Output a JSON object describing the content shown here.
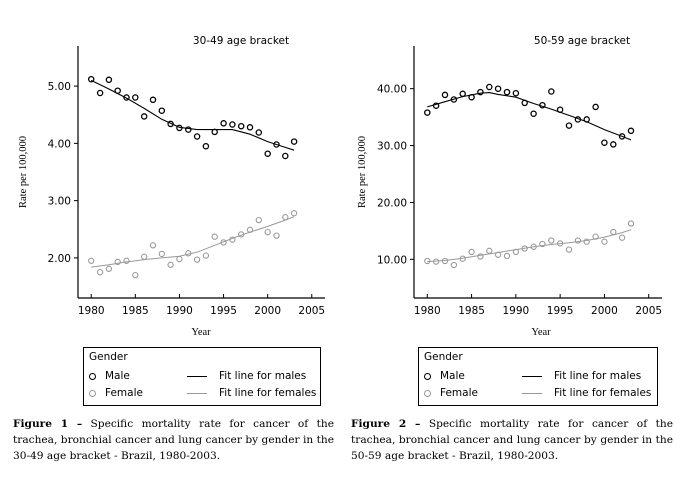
{
  "chart_data": [
    {
      "type": "scatter",
      "title": "30-49 age bracket",
      "xlabel": "Year",
      "ylabel": "Rate per 100,000",
      "xlim": [
        1978.5,
        2006.5
      ],
      "ylim": [
        1.3,
        5.7
      ],
      "xticks": [
        1980,
        1985,
        1990,
        1995,
        2000,
        2005
      ],
      "xtick_labels": [
        "1980",
        "1985",
        "1990",
        "1995",
        "2000",
        "2005"
      ],
      "yticks": [
        2,
        3,
        4,
        5
      ],
      "ytick_labels": [
        "2.00",
        "3.00",
        "4.00",
        "5.00"
      ],
      "grid": false,
      "x": [
        1980,
        1981,
        1982,
        1983,
        1984,
        1985,
        1986,
        1987,
        1988,
        1989,
        1990,
        1991,
        1992,
        1993,
        1994,
        1995,
        1996,
        1997,
        1998,
        1999,
        2000,
        2001,
        2002,
        2003
      ],
      "series": [
        {
          "name": "Male",
          "color": "#000000",
          "values": [
            5.12,
            4.88,
            5.11,
            4.92,
            4.8,
            4.8,
            4.47,
            4.76,
            4.57,
            4.34,
            4.27,
            4.24,
            4.12,
            3.95,
            4.2,
            4.35,
            4.33,
            4.3,
            4.28,
            4.19,
            3.82,
            3.98,
            3.78,
            4.03
          ],
          "fit_name": "Fit line for males",
          "fit": {
            "x": [
              1980,
              1982,
              1984,
              1986,
              1988,
              1990,
              1992,
              1994,
              1996,
              1998,
              2000,
              2002,
              2003
            ],
            "y": [
              5.1,
              4.95,
              4.79,
              4.61,
              4.42,
              4.28,
              4.24,
              4.24,
              4.24,
              4.16,
              4.03,
              3.93,
              3.88
            ]
          }
        },
        {
          "name": "Female",
          "color": "#999999",
          "values": [
            1.95,
            1.75,
            1.81,
            1.93,
            1.95,
            1.7,
            2.02,
            2.22,
            2.07,
            1.88,
            1.98,
            2.08,
            1.97,
            2.04,
            2.37,
            2.27,
            2.32,
            2.41,
            2.49,
            2.66,
            2.45,
            2.39,
            2.71,
            2.78
          ],
          "fit_name": "Fit line for females",
          "fit": {
            "x": [
              1980,
              1982,
              1984,
              1986,
              1988,
              1990,
              1992,
              1994,
              1996,
              1998,
              2000,
              2002,
              2003
            ],
            "y": [
              1.84,
              1.88,
              1.93,
              1.97,
              2.0,
              2.03,
              2.1,
              2.22,
              2.34,
              2.45,
              2.55,
              2.66,
              2.72
            ]
          }
        }
      ],
      "legend": {
        "title": "Gender",
        "placement": "bottom",
        "entries": [
          {
            "marker": "Male",
            "line": "Fit line for males"
          },
          {
            "marker": "Female",
            "line": "Fit line for females"
          }
        ]
      },
      "caption": {
        "label": "Figure 1 –",
        "text": " Specific mortality rate for cancer of the trachea, bronchial cancer and lung cancer by gender in the 30-49 age bracket - Brazil, 1980-2003."
      }
    },
    {
      "type": "scatter",
      "title": "50-59 age bracket",
      "xlabel": "Year",
      "ylabel": "Rate per 100,000",
      "xlim": [
        1978.5,
        2006.5
      ],
      "ylim": [
        3.2,
        47.5
      ],
      "xticks": [
        1980,
        1985,
        1990,
        1995,
        2000,
        2005
      ],
      "xtick_labels": [
        "1980",
        "1985",
        "1990",
        "1995",
        "2000",
        "2005"
      ],
      "yticks": [
        10,
        20,
        30,
        40
      ],
      "ytick_labels": [
        "10.00",
        "20.00",
        "30.00",
        "40.00"
      ],
      "grid": false,
      "x": [
        1980,
        1981,
        1982,
        1983,
        1984,
        1985,
        1986,
        1987,
        1988,
        1989,
        1990,
        1991,
        1992,
        1993,
        1994,
        1995,
        1996,
        1997,
        1998,
        1999,
        2000,
        2001,
        2002,
        2003
      ],
      "series": [
        {
          "name": "Male",
          "color": "#000000",
          "values": [
            35.8,
            37.0,
            38.9,
            38.1,
            39.1,
            38.5,
            39.4,
            40.3,
            40.0,
            39.4,
            39.2,
            37.5,
            35.6,
            37.1,
            39.5,
            36.3,
            33.5,
            34.6,
            34.6,
            36.8,
            30.5,
            30.2,
            31.6,
            32.6
          ],
          "fit_name": "Fit line for males",
          "fit": {
            "x": [
              1980,
              1982,
              1984,
              1986,
              1987,
              1988,
              1990,
              1992,
              1994,
              1996,
              1998,
              2000,
              2002,
              2003
            ],
            "y": [
              36.8,
              37.7,
              38.6,
              39.2,
              39.3,
              39.0,
              38.5,
              37.4,
              36.4,
              35.3,
              34.2,
              32.8,
              31.6,
              31.0
            ]
          }
        },
        {
          "name": "Female",
          "color": "#999999",
          "values": [
            9.7,
            9.6,
            9.7,
            9.0,
            10.1,
            11.3,
            10.5,
            11.5,
            10.8,
            10.6,
            11.3,
            11.9,
            12.2,
            12.7,
            13.3,
            12.8,
            11.7,
            13.3,
            13.1,
            14.0,
            13.1,
            14.8,
            13.8,
            16.3
          ],
          "fit_name": "Fit line for females",
          "fit": {
            "x": [
              1980,
              1982,
              1984,
              1986,
              1988,
              1990,
              1992,
              1994,
              1996,
              1998,
              2000,
              2002,
              2003
            ],
            "y": [
              9.6,
              9.8,
              10.2,
              10.7,
              11.2,
              11.7,
              12.2,
              12.6,
              12.9,
              13.3,
              13.9,
              14.7,
              15.2
            ]
          }
        }
      ],
      "legend": {
        "title": "Gender",
        "placement": "bottom",
        "entries": [
          {
            "marker": "Male",
            "line": "Fit line for males"
          },
          {
            "marker": "Female",
            "line": "Fit line for females"
          }
        ]
      },
      "caption": {
        "label": "Figure 2 –",
        "text": " Specific mortality rate for cancer of the trachea, bronchial cancer and lung cancer by gender in the 50-59 age bracket - Brazil, 1980-2003."
      }
    }
  ]
}
